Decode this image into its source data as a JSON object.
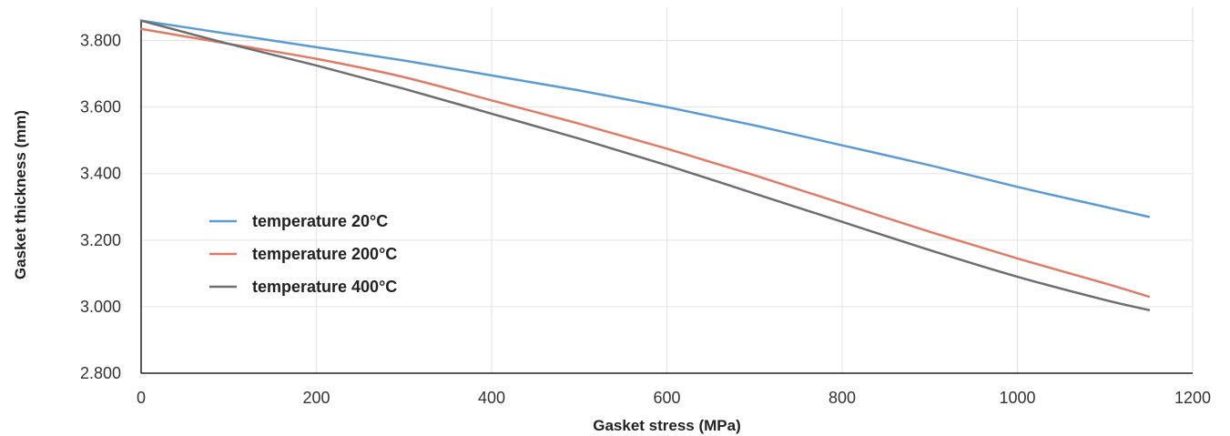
{
  "chart_data": {
    "type": "line",
    "xlabel": "Gasket stress (MPa)",
    "ylabel": "Gasket thickness (mm)",
    "xlim": [
      0,
      1200
    ],
    "ylim": [
      2.8,
      3.9
    ],
    "xticks": [
      0,
      200,
      400,
      600,
      800,
      1000,
      1200
    ],
    "xtick_labels": [
      "0",
      "200",
      "400",
      "600",
      "800",
      "1000",
      "1200"
    ],
    "yticks": [
      2.8,
      3.0,
      3.2,
      3.4,
      3.6,
      3.8
    ],
    "ytick_labels": [
      "2.800",
      "3.000",
      "3.200",
      "3.400",
      "3.600",
      "3.800"
    ],
    "grid": true,
    "legend_position": "left",
    "x": [
      0,
      100,
      200,
      300,
      400,
      500,
      600,
      700,
      800,
      900,
      1000,
      1100,
      1150
    ],
    "series": [
      {
        "name": "temperature 20°C",
        "color": "#5B9BD5",
        "values": [
          3.86,
          3.82,
          3.78,
          3.74,
          3.695,
          3.65,
          3.6,
          3.545,
          3.485,
          3.425,
          3.36,
          3.3,
          3.27
        ]
      },
      {
        "name": "temperature 200°C",
        "color": "#E07B67",
        "values": [
          3.835,
          3.79,
          3.745,
          3.69,
          3.62,
          3.55,
          3.475,
          3.395,
          3.31,
          3.225,
          3.145,
          3.07,
          3.03
        ]
      },
      {
        "name": "temperature 400°C",
        "color": "#6E6E70",
        "values": [
          3.86,
          3.79,
          3.725,
          3.655,
          3.58,
          3.505,
          3.425,
          3.34,
          3.255,
          3.17,
          3.09,
          3.02,
          2.99
        ]
      }
    ]
  }
}
